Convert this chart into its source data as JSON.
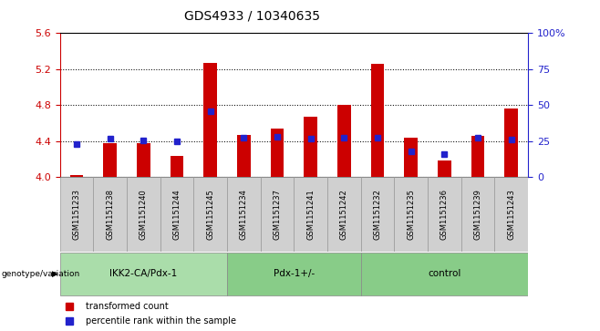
{
  "title": "GDS4933 / 10340635",
  "samples": [
    "GSM1151233",
    "GSM1151238",
    "GSM1151240",
    "GSM1151244",
    "GSM1151245",
    "GSM1151234",
    "GSM1151237",
    "GSM1151241",
    "GSM1151242",
    "GSM1151232",
    "GSM1151235",
    "GSM1151236",
    "GSM1151239",
    "GSM1151243"
  ],
  "bar_values": [
    4.02,
    4.38,
    4.38,
    4.24,
    5.27,
    4.47,
    4.54,
    4.67,
    4.8,
    5.26,
    4.44,
    4.18,
    4.46,
    4.76
  ],
  "percentile_left": [
    4.37,
    4.43,
    4.41,
    4.4,
    4.73,
    4.44,
    4.445,
    4.43,
    4.44,
    4.435,
    4.285,
    4.26,
    4.44,
    4.42
  ],
  "ymin": 4.0,
  "ymax": 5.6,
  "yticks_left": [
    4.0,
    4.4,
    4.8,
    5.2,
    5.6
  ],
  "yticks_right": [
    0,
    25,
    50,
    75,
    100
  ],
  "bar_color": "#cc0000",
  "percentile_color": "#2222cc",
  "groups": [
    {
      "label": "IKK2-CA/Pdx-1",
      "start": 0,
      "end": 5,
      "color": "#aaddaa"
    },
    {
      "label": "Pdx-1+/-",
      "start": 5,
      "end": 9,
      "color": "#88cc88"
    },
    {
      "label": "control",
      "start": 9,
      "end": 14,
      "color": "#88cc88"
    }
  ],
  "sample_bg_color": "#d0d0d0",
  "sample_border_color": "#999999",
  "left_axis_color": "#cc0000",
  "right_axis_color": "#2222cc",
  "fig_width": 6.58,
  "fig_height": 3.63,
  "dpi": 100
}
